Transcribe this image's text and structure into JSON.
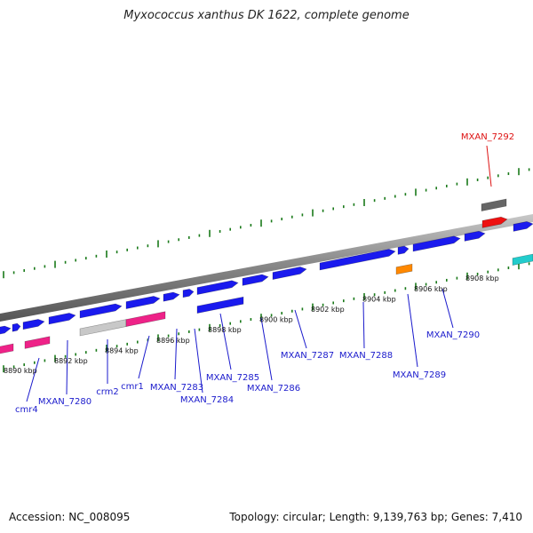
{
  "title": "Myxococcus xanthus DK 1622, complete genome",
  "footer": {
    "accession": "Accession: NC_008095",
    "topology": "Topology: circular; Length: 9,139,763 bp; Genes: 7,410"
  },
  "kbp_labels": [
    "8890 kbp",
    "8892 kbp",
    "8894 kbp",
    "8896 kbp",
    "8898 kbp",
    "8900 kbp",
    "8902 kbp",
    "8904 kbp",
    "8906 kbp",
    "8908 kbp"
  ],
  "gene_labels": [
    "MXAN_7292",
    "cmr4",
    "MXAN_7280",
    "crm2",
    "cmr1",
    "MXAN_7283",
    "MXAN_7284",
    "MXAN_7285",
    "MXAN_7286",
    "MXAN_7287",
    "MXAN_7288",
    "MXAN_7289",
    "MXAN_7290"
  ],
  "colors": {
    "forward_gene": "#1a1aee",
    "crispr_pink": "#ee2288",
    "gray_feature": "#c8c8c8",
    "dark_gray_feature": "#666666",
    "highlight_red": "#ee1111",
    "orange_feature": "#ff8800",
    "cyan_feature": "#22cccc",
    "tick_green": "#1a7a1a",
    "label_blue": "#1a1acc",
    "label_red": "#dd1111"
  }
}
